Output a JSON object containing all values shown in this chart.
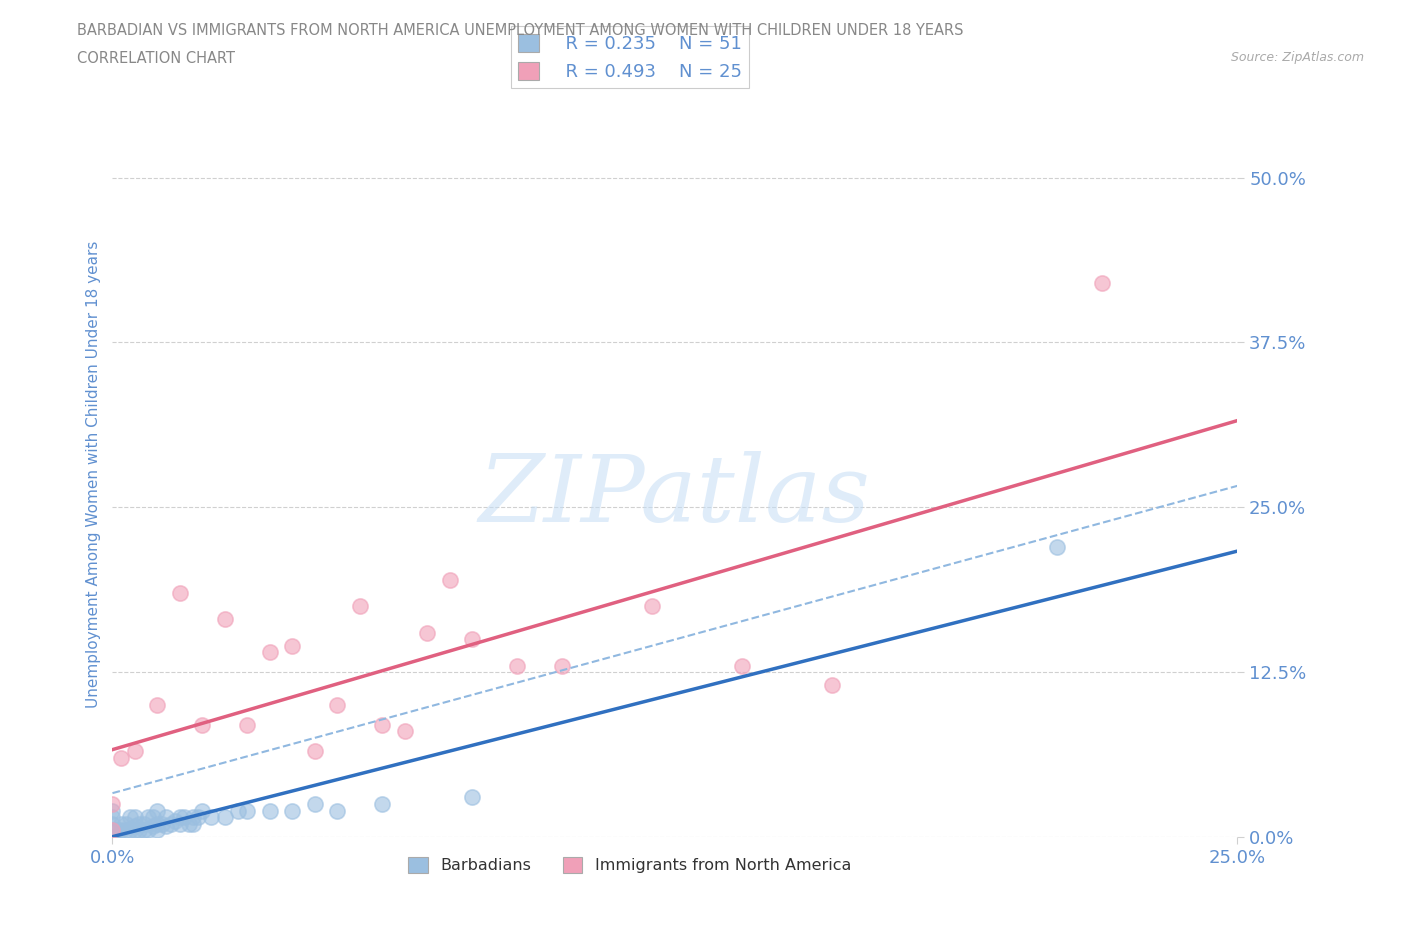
{
  "title_line1": "BARBADIAN VS IMMIGRANTS FROM NORTH AMERICA UNEMPLOYMENT AMONG WOMEN WITH CHILDREN UNDER 18 YEARS",
  "title_line2": "CORRELATION CHART",
  "source_text": "Source: ZipAtlas.com",
  "ylabel": "Unemployment Among Women with Children Under 18 years",
  "xlim": [
    0.0,
    0.25
  ],
  "ylim": [
    0.0,
    0.55
  ],
  "ytick_labels": [
    "0.0%",
    "12.5%",
    "25.0%",
    "37.5%",
    "50.0%"
  ],
  "ytick_vals": [
    0.0,
    0.125,
    0.25,
    0.375,
    0.5
  ],
  "xtick_labels": [
    "0.0%",
    "25.0%"
  ],
  "xtick_vals": [
    0.0,
    0.25
  ],
  "legend_blue_r": "R = 0.235",
  "legend_blue_n": "N = 51",
  "legend_pink_r": "R = 0.493",
  "legend_pink_n": "N = 25",
  "barbadian_color": "#9bbfe0",
  "immigrant_color": "#f0a0b8",
  "blue_line_color": "#3070c0",
  "pink_line_color": "#e06080",
  "dashed_line_color": "#90b8e0",
  "grid_color": "#d0d0d0",
  "title_color": "#888888",
  "axis_label_color": "#6090d0",
  "barb_x": [
    0.0,
    0.0,
    0.0,
    0.0,
    0.0,
    0.001,
    0.001,
    0.002,
    0.002,
    0.003,
    0.003,
    0.004,
    0.004,
    0.005,
    0.005,
    0.005,
    0.006,
    0.006,
    0.007,
    0.007,
    0.008,
    0.008,
    0.009,
    0.009,
    0.01,
    0.01,
    0.01,
    0.011,
    0.012,
    0.012,
    0.013,
    0.014,
    0.015,
    0.015,
    0.016,
    0.017,
    0.018,
    0.018,
    0.019,
    0.02,
    0.022,
    0.025,
    0.028,
    0.03,
    0.035,
    0.04,
    0.045,
    0.05,
    0.06,
    0.08,
    0.21
  ],
  "barb_y": [
    0.0,
    0.005,
    0.01,
    0.015,
    0.02,
    0.0,
    0.005,
    0.005,
    0.01,
    0.005,
    0.01,
    0.005,
    0.015,
    0.005,
    0.008,
    0.015,
    0.005,
    0.01,
    0.005,
    0.01,
    0.005,
    0.015,
    0.008,
    0.015,
    0.005,
    0.01,
    0.02,
    0.01,
    0.008,
    0.015,
    0.01,
    0.012,
    0.01,
    0.015,
    0.015,
    0.01,
    0.01,
    0.015,
    0.015,
    0.02,
    0.015,
    0.015,
    0.02,
    0.02,
    0.02,
    0.02,
    0.025,
    0.02,
    0.025,
    0.03,
    0.22
  ],
  "imm_x": [
    0.0,
    0.0,
    0.002,
    0.005,
    0.01,
    0.015,
    0.02,
    0.025,
    0.03,
    0.035,
    0.04,
    0.045,
    0.05,
    0.055,
    0.06,
    0.065,
    0.07,
    0.075,
    0.08,
    0.09,
    0.1,
    0.12,
    0.14,
    0.16,
    0.22
  ],
  "imm_y": [
    0.005,
    0.025,
    0.06,
    0.065,
    0.1,
    0.185,
    0.085,
    0.165,
    0.085,
    0.14,
    0.145,
    0.065,
    0.1,
    0.175,
    0.085,
    0.08,
    0.155,
    0.195,
    0.15,
    0.13,
    0.13,
    0.175,
    0.13,
    0.115,
    0.42
  ]
}
